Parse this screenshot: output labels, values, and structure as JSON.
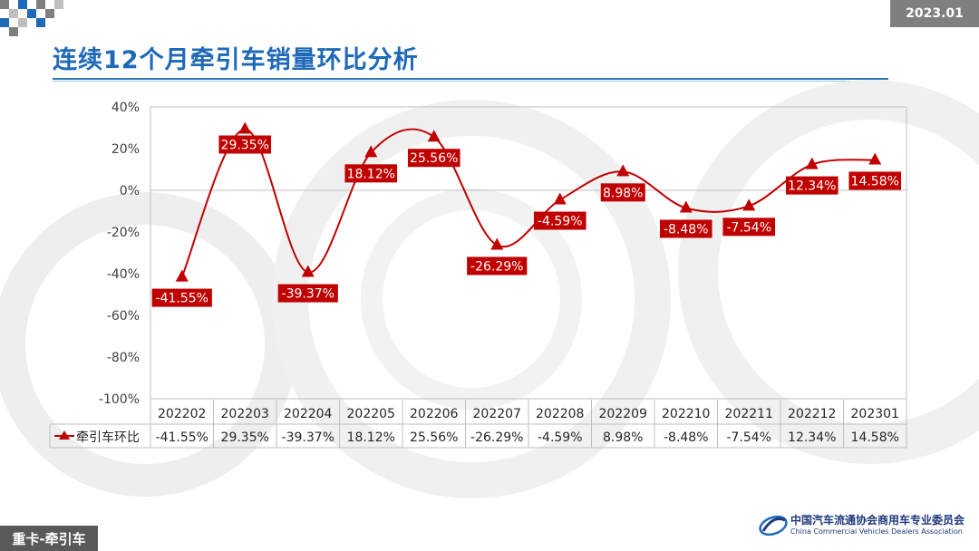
{
  "header": {
    "title": "连续12个月牵引车销量环比分析",
    "date": "2023.01"
  },
  "footer": {
    "tag": "重卡-牵引车",
    "assoc_cn": "中国汽车流通协会商用车专业委员会",
    "assoc_en": "China Commercial Vehicles Dealers Association"
  },
  "colors": {
    "series": "#c00000",
    "accent": "#1f6ab8",
    "badge": "#7f7f7f"
  },
  "chart_data": {
    "type": "line",
    "title": "",
    "xlabel": "",
    "ylabel": "",
    "ylim": [
      -100,
      40
    ],
    "y_ticks": [
      "40%",
      "20%",
      "0%",
      "-20%",
      "-40%",
      "-60%",
      "-80%",
      "-100%"
    ],
    "y_tick_values": [
      40,
      20,
      0,
      -20,
      -40,
      -60,
      -80,
      -100
    ],
    "grid": false,
    "zero_line": true,
    "smooth": true,
    "marker": "triangle",
    "legend": "bottom-left table",
    "categories": [
      "202202",
      "202203",
      "202204",
      "202205",
      "202206",
      "202207",
      "202208",
      "202209",
      "202210",
      "202211",
      "202212",
      "202301"
    ],
    "series": [
      {
        "name": "牵引车环比",
        "values": [
          -41.55,
          29.35,
          -39.37,
          18.12,
          25.56,
          -26.29,
          -4.59,
          8.98,
          -8.48,
          -7.54,
          12.34,
          14.58
        ],
        "labels": [
          "-41.55%",
          "29.35%",
          "-39.37%",
          "18.12%",
          "25.56%",
          "-26.29%",
          "-4.59%",
          "8.98%",
          "-8.48%",
          "-7.54%",
          "12.34%",
          "14.58%"
        ]
      }
    ]
  }
}
